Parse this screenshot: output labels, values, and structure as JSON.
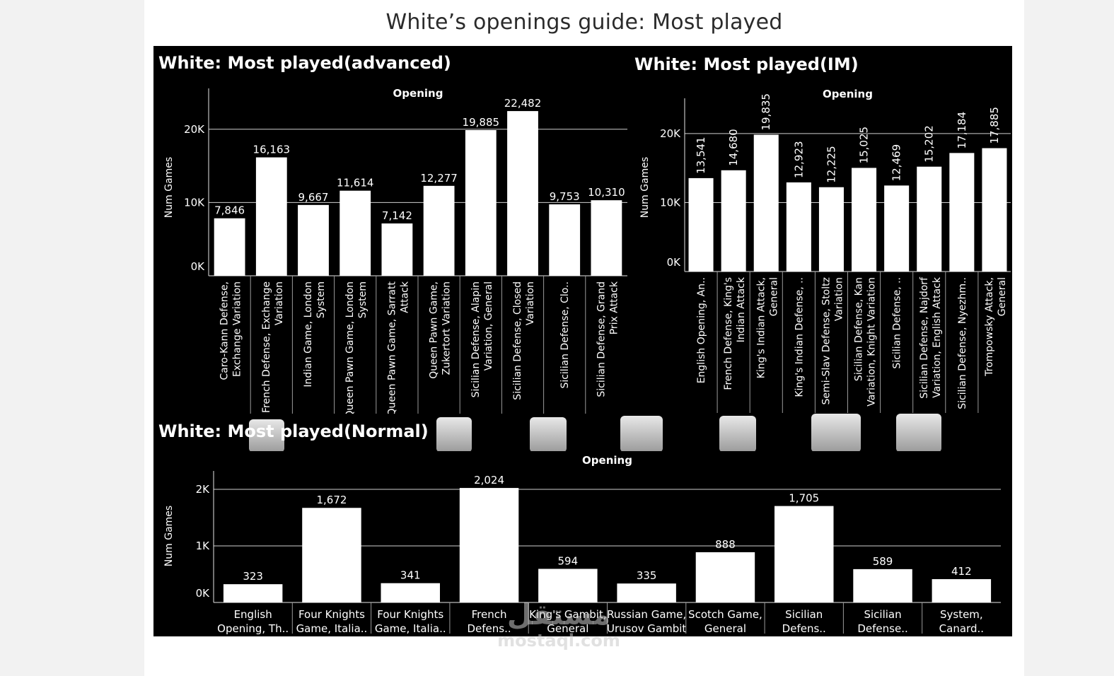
{
  "dashboard": {
    "title": "White’s openings guide: Most played"
  },
  "watermark": {
    "arabic": "مستقل",
    "latin": "mostaql.com"
  },
  "chart_data": [
    {
      "id": "advanced",
      "type": "bar",
      "title": "White: Most played(advanced)",
      "xlabel": "Opening",
      "ylabel": "Num Games",
      "ylim": [
        0,
        25000
      ],
      "yticks": [
        0,
        10000,
        20000
      ],
      "ytick_labels": [
        "0K",
        "10K",
        "20K"
      ],
      "grid": true,
      "categories": [
        [
          "Caro-Kann Defense,",
          "Exchange Variation"
        ],
        [
          "French Defense, Exchange",
          "Variation"
        ],
        [
          "Indian Game, London",
          "System"
        ],
        [
          "Queen Pawn Game, London",
          "System"
        ],
        [
          "Queen Pawn Game, Sarratt",
          "Attack"
        ],
        [
          "Queen Pawn Game,",
          "Zukertort Variation"
        ],
        [
          "Sicilian Defense, Alapin",
          "Variation, General"
        ],
        [
          "Sicilian Defense, Closed",
          "Variation"
        ],
        [
          "Sicilian Defense, Clo.."
        ],
        [
          "Sicilian Defense, Grand",
          "Prix Attack"
        ]
      ],
      "values": [
        7846,
        16163,
        9667,
        11614,
        7142,
        12277,
        19885,
        22482,
        9753,
        10310
      ],
      "value_labels": [
        "7,846",
        "16,163",
        "9,667",
        "11,614",
        "7,142",
        "12,277",
        "19,885",
        "22,482",
        "9,753",
        "10,310"
      ]
    },
    {
      "id": "im",
      "type": "bar",
      "title": "White: Most played(IM)",
      "xlabel": "Opening",
      "ylabel": "Num Games",
      "ylim": [
        0,
        24500
      ],
      "yticks": [
        0,
        10000,
        20000
      ],
      "ytick_labels": [
        "0K",
        "10K",
        "20K"
      ],
      "grid": true,
      "categories": [
        [
          "English Opening, An.."
        ],
        [
          "French Defense, King's",
          "Indian Attack"
        ],
        [
          "King's Indian Attack,",
          "General"
        ],
        [
          "King's Indian Defense, .."
        ],
        [
          "Semi-Slav Defense, Stoltz",
          "Variation"
        ],
        [
          "Sicilian Defense, Kan",
          "Variation, Knight Variation"
        ],
        [
          "Sicilian Defense, .."
        ],
        [
          "Sicilian Defense, Najdorf",
          "Variation, English Attack"
        ],
        [
          "Sicilian Defense, Nyezhm.."
        ],
        [
          "Trompowsky Attack,",
          "General"
        ]
      ],
      "values": [
        13541,
        14680,
        19835,
        12923,
        12225,
        15025,
        12469,
        15202,
        17184,
        17885
      ],
      "value_labels": [
        "13,541",
        "14,680",
        "19,835",
        "12,923",
        "12,225",
        "15,025",
        "12,469",
        "15,202",
        "17,184",
        "17,885"
      ]
    },
    {
      "id": "normal",
      "type": "bar",
      "title": "White: Most played(Normal)",
      "xlabel": "Opening",
      "ylabel": "Num Games",
      "ylim": [
        0,
        2250
      ],
      "yticks": [
        0,
        1000,
        2000
      ],
      "ytick_labels": [
        "0K",
        "1K",
        "2K"
      ],
      "grid": true,
      "categories": [
        [
          "English",
          "Opening, Th.."
        ],
        [
          "Four Knights",
          "Game, Italia.."
        ],
        [
          "Four Knights",
          "Game, Italia.."
        ],
        [
          "French",
          "Defens.."
        ],
        [
          "King's Gambit,",
          "General"
        ],
        [
          "Russian Game,",
          "Urusov Gambit"
        ],
        [
          "Scotch Game,",
          "General"
        ],
        [
          "Sicilian",
          "Defens.."
        ],
        [
          "Sicilian",
          "Defense.."
        ],
        [
          "System,",
          "Canard.."
        ]
      ],
      "values": [
        323,
        1672,
        341,
        2024,
        594,
        335,
        888,
        1705,
        589,
        412
      ],
      "value_labels": [
        "323",
        "1,672",
        "341",
        "2,024",
        "594",
        "335",
        "888",
        "1,705",
        "589",
        "412"
      ]
    }
  ]
}
